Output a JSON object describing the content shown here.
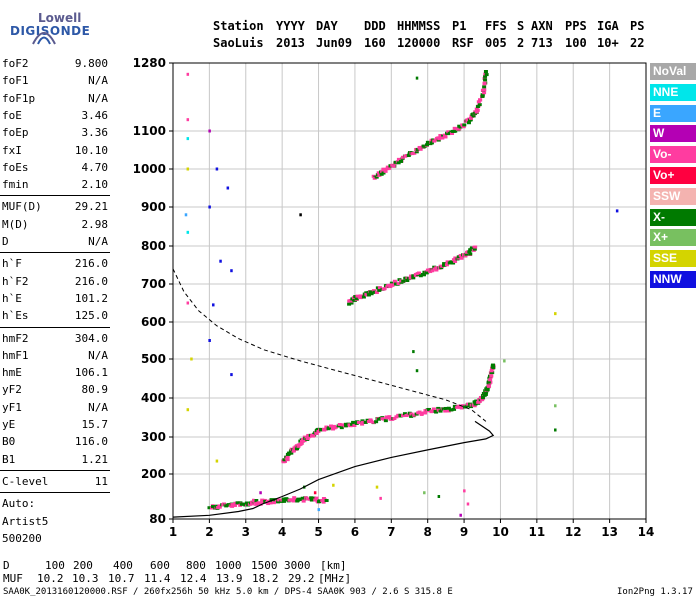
{
  "logo": {
    "line1": "Lowell",
    "line2": "DIGISONDE"
  },
  "header": {
    "labels": [
      "Station",
      "YYYY",
      "DAY",
      "DDD",
      "HHMMSS",
      "P1",
      "FFS",
      "S",
      "AXN",
      "PPS",
      "IGA",
      "PS"
    ],
    "values": [
      "SaoLuis",
      "2013",
      "Jun09",
      "160",
      "120000",
      "RSF",
      "005",
      "2",
      "713",
      "100",
      "10+",
      "22"
    ]
  },
  "params": {
    "group1": [
      {
        "name": "foF2",
        "value": "9.800"
      },
      {
        "name": "foF1",
        "value": "N/A"
      },
      {
        "name": "foF1p",
        "value": "N/A"
      },
      {
        "name": "foE",
        "value": "3.46"
      },
      {
        "name": "foEp",
        "value": "3.36"
      },
      {
        "name": "fxI",
        "value": "10.10"
      },
      {
        "name": "foEs",
        "value": "4.70"
      },
      {
        "name": "fmin",
        "value": "2.10"
      }
    ],
    "group2": [
      {
        "name": "MUF(D)",
        "value": "29.21"
      },
      {
        "name": "M(D)",
        "value": "2.98"
      },
      {
        "name": "D",
        "value": "N/A"
      }
    ],
    "group3": [
      {
        "name": "h`F",
        "value": "216.0"
      },
      {
        "name": "h`F2",
        "value": "216.0"
      },
      {
        "name": "h`E",
        "value": "101.2"
      },
      {
        "name": "h`Es",
        "value": "125.0"
      }
    ],
    "group4": [
      {
        "name": "hmF2",
        "value": "304.0"
      },
      {
        "name": "hmF1",
        "value": "N/A"
      },
      {
        "name": "hmE",
        "value": "106.1"
      },
      {
        "name": "yF2",
        "value": "80.9"
      },
      {
        "name": "yF1",
        "value": "N/A"
      },
      {
        "name": "yE",
        "value": "15.7"
      },
      {
        "name": "B0",
        "value": "116.0"
      },
      {
        "name": "B1",
        "value": "1.21"
      }
    ],
    "group5": [
      {
        "name": "C-level",
        "value": "11"
      }
    ],
    "group6": [
      "Auto:",
      "Artist5",
      "500200"
    ]
  },
  "legend": [
    {
      "label": "NoVal",
      "color": "#a8a8a8"
    },
    {
      "label": "NNE",
      "color": "#00e6ea"
    },
    {
      "label": "E",
      "color": "#3aa6ff"
    },
    {
      "label": "W",
      "color": "#b400b4"
    },
    {
      "label": "Vo-",
      "color": "#ff3ca0"
    },
    {
      "label": "Vo+",
      "color": "#ff0040"
    },
    {
      "label": "SSW",
      "color": "#f4b3b0"
    },
    {
      "label": "X-",
      "color": "#007a00"
    },
    {
      "label": "X+",
      "color": "#78c060"
    },
    {
      "label": "SSE",
      "color": "#d4d400"
    },
    {
      "label": "NNW",
      "color": "#1010e0"
    }
  ],
  "footer": {
    "d_label": "D",
    "d_values": [
      "100",
      "200",
      "400",
      "600",
      "800",
      "1000",
      "1500",
      "3000"
    ],
    "d_unit": "[km]",
    "muf_label": "MUF",
    "muf_values": [
      "10.2",
      "10.3",
      "10.7",
      "11.4",
      "12.4",
      "13.9",
      "18.2",
      "29.2"
    ],
    "muf_unit": "[MHz]",
    "file_info": "SAA0K_2013160120000.RSF / 260fx256h 50 kHz 5.0 km / DPS-4 SAA0K 903 / 2.6 S 315.8 E",
    "version": "Ion2Png 1.3.17"
  },
  "chart_data": {
    "type": "scatter",
    "xlim": [
      1,
      14
    ],
    "x_ticks": [
      "1",
      "2",
      "3",
      "4",
      "5",
      "6",
      "7",
      "8",
      "9",
      "10",
      "11",
      "12",
      "13",
      "14"
    ],
    "y_ticks": [
      "80",
      "200",
      "300",
      "400",
      "500",
      "600",
      "700",
      "800",
      "900",
      "1000",
      "1100",
      "1280"
    ],
    "y_tick_values": [
      80,
      200,
      300,
      400,
      500,
      600,
      700,
      800,
      900,
      1000,
      1100,
      1280
    ],
    "grid": true,
    "traces": [
      {
        "name": "F2 trace",
        "color": "#ff3ca0",
        "alt": "#007a00",
        "points": [
          [
            4.0,
            230
          ],
          [
            4.2,
            255
          ],
          [
            4.4,
            275
          ],
          [
            4.6,
            292
          ],
          [
            4.8,
            305
          ],
          [
            5.0,
            315
          ],
          [
            5.5,
            326
          ],
          [
            6.0,
            333
          ],
          [
            6.5,
            340
          ],
          [
            7.0,
            348
          ],
          [
            7.5,
            356
          ],
          [
            8.0,
            364
          ],
          [
            8.5,
            370
          ],
          [
            9.0,
            376
          ],
          [
            9.3,
            385
          ],
          [
            9.5,
            400
          ],
          [
            9.6,
            420
          ],
          [
            9.7,
            450
          ],
          [
            9.8,
            490
          ]
        ]
      },
      {
        "name": "F2 second hop",
        "color": "#ff3ca0",
        "alt": "#007a00",
        "points": [
          [
            5.8,
            650
          ],
          [
            6.0,
            662
          ],
          [
            6.4,
            675
          ],
          [
            6.8,
            690
          ],
          [
            7.2,
            705
          ],
          [
            7.6,
            718
          ],
          [
            8.0,
            732
          ],
          [
            8.4,
            748
          ],
          [
            8.8,
            765
          ],
          [
            9.1,
            780
          ],
          [
            9.3,
            795
          ]
        ]
      },
      {
        "name": "F2 third hop",
        "color": "#ff3ca0",
        "alt": "#007a00",
        "points": [
          [
            6.5,
            975
          ],
          [
            6.8,
            995
          ],
          [
            7.2,
            1020
          ],
          [
            7.6,
            1045
          ],
          [
            8.0,
            1065
          ],
          [
            8.4,
            1085
          ],
          [
            8.8,
            1105
          ],
          [
            9.1,
            1125
          ],
          [
            9.3,
            1150
          ],
          [
            9.5,
            1200
          ],
          [
            9.6,
            1260
          ]
        ]
      },
      {
        "name": "E/Es trace",
        "color": "#ff3ca0",
        "alt": "#007a00",
        "points": [
          [
            2.0,
            110
          ],
          [
            2.4,
            115
          ],
          [
            2.8,
            118
          ],
          [
            3.2,
            122
          ],
          [
            3.6,
            125
          ],
          [
            4.0,
            128
          ],
          [
            4.4,
            132
          ],
          [
            4.8,
            130
          ],
          [
            5.2,
            128
          ]
        ]
      }
    ],
    "profile_solid": [
      [
        1.0,
        85
      ],
      [
        2.0,
        90
      ],
      [
        2.8,
        100
      ],
      [
        3.2,
        108
      ],
      [
        3.46,
        120
      ],
      [
        4.0,
        140
      ],
      [
        4.5,
        160
      ],
      [
        5.0,
        185
      ],
      [
        6.0,
        220
      ],
      [
        7.0,
        245
      ],
      [
        8.0,
        265
      ],
      [
        9.0,
        285
      ],
      [
        9.6,
        295
      ],
      [
        9.8,
        304
      ],
      [
        9.7,
        315
      ],
      [
        9.3,
        340
      ]
    ],
    "profile_dashed": [
      [
        1.0,
        740
      ],
      [
        1.3,
        680
      ],
      [
        1.7,
        630
      ],
      [
        2.2,
        590
      ],
      [
        2.8,
        555
      ],
      [
        3.5,
        525
      ],
      [
        4.5,
        495
      ],
      [
        5.5,
        470
      ],
      [
        6.5,
        445
      ],
      [
        7.5,
        420
      ],
      [
        8.5,
        395
      ],
      [
        9.2,
        370
      ],
      [
        9.6,
        340
      ]
    ]
  }
}
